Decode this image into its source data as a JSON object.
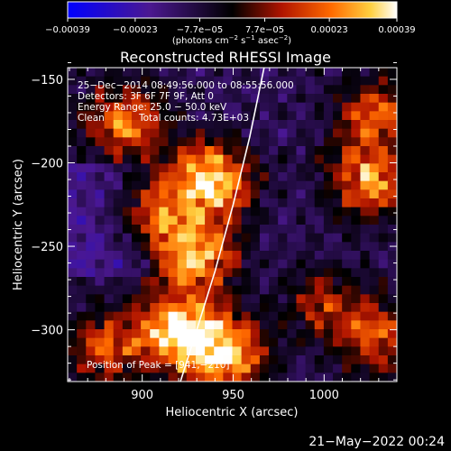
{
  "chart_data": {
    "type": "heatmap",
    "title": "Reconstructed RHESSI Image",
    "xlabel": "Heliocentric X (arcsec)",
    "ylabel": "Heliocentric Y (arcsec)",
    "xlim": [
      859,
      1040
    ],
    "ylim": [
      -331,
      -143
    ],
    "x_ticks": [
      900,
      950,
      1000
    ],
    "x_tick_labels": [
      "900",
      "950",
      "1000"
    ],
    "y_ticks": [
      -150,
      -200,
      -250,
      -300
    ],
    "y_tick_labels": [
      "−150",
      "−200",
      "−250",
      "−300"
    ],
    "colorbar": {
      "ticks": [
        -0.00039,
        -0.00023,
        -7.7e-05,
        7.7e-05,
        0.00023,
        0.00039
      ],
      "tick_labels": [
        "−0.00039",
        "−0.00023",
        "−7.7e−05",
        "7.7e−05",
        "0.00023",
        "0.00039"
      ],
      "range": [
        -0.00039,
        0.00039
      ],
      "units_prefix": "(photons cm",
      "units_exp1": "−2",
      "units_mid1": " s",
      "units_exp2": "−1",
      "units_mid2": " asec",
      "units_exp3": "−2",
      "units_suffix": ")"
    },
    "annotations": {
      "time_range": "25−Dec−2014 08:49:56.000 to 08:55:56.000",
      "detectors": "Detectors: 3F 6F 7F 9F, Att 0",
      "energy": "Energy Range: 25.0 − 50.0 keV",
      "clean_label": "Clean",
      "total_counts": "Total counts: 4.73E+03",
      "peak": "Position of Peak = [941,−210]"
    },
    "limb_curve": [
      [
        921,
        -331
      ],
      [
        930,
        -300
      ],
      [
        940,
        -265
      ],
      [
        950,
        -225
      ],
      [
        959,
        -185
      ],
      [
        967,
        -143
      ]
    ],
    "hotspots": [
      {
        "x": 938,
        "y": -210,
        "w": 1.0
      },
      {
        "x": 930,
        "y": -255,
        "w": 0.85
      },
      {
        "x": 920,
        "y": -300,
        "w": 0.95
      },
      {
        "x": 945,
        "y": -315,
        "w": 0.9
      },
      {
        "x": 890,
        "y": -175,
        "w": 0.7
      },
      {
        "x": 1025,
        "y": -210,
        "w": 0.8
      },
      {
        "x": 1028,
        "y": -170,
        "w": 0.55
      },
      {
        "x": 1030,
        "y": -305,
        "w": 0.6
      },
      {
        "x": 880,
        "y": -310,
        "w": 0.55
      },
      {
        "x": 1000,
        "y": -285,
        "w": 0.45
      },
      {
        "x": 905,
        "y": -230,
        "w": 0.6
      }
    ],
    "grid": false
  },
  "footer": {
    "timestamp": "21−May−2022 00:24"
  }
}
